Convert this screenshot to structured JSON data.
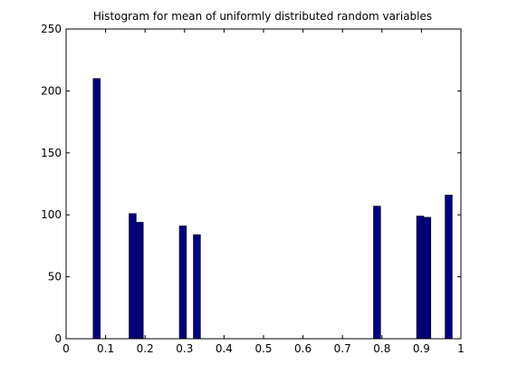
{
  "chart_data": {
    "type": "bar",
    "title": "Histogram for mean of uniformly distributed random variables",
    "xlabel": "",
    "ylabel": "",
    "xlim": [
      0,
      1
    ],
    "ylim": [
      0,
      250
    ],
    "xticks": [
      0,
      0.1,
      0.2,
      0.3,
      0.4,
      0.5,
      0.6,
      0.7,
      0.8,
      0.9,
      1
    ],
    "xtick_labels": [
      "0",
      "0.1",
      "0.2",
      "0.3",
      "0.4",
      "0.5",
      "0.6",
      "0.7",
      "0.8",
      "0.9",
      "1"
    ],
    "yticks": [
      0,
      50,
      100,
      150,
      200,
      250
    ],
    "ytick_labels": [
      "0",
      "50",
      "100",
      "150",
      "200",
      "250"
    ],
    "grid": false,
    "bar_color": "#000080",
    "bars": [
      {
        "x0": 0.0685,
        "x1": 0.0865,
        "value": 210
      },
      {
        "x0": 0.1595,
        "x1": 0.1775,
        "value": 101
      },
      {
        "x0": 0.1775,
        "x1": 0.1955,
        "value": 94
      },
      {
        "x0": 0.2868,
        "x1": 0.3048,
        "value": 91
      },
      {
        "x0": 0.3223,
        "x1": 0.3403,
        "value": 84
      },
      {
        "x0": 0.7786,
        "x1": 0.7966,
        "value": 107
      },
      {
        "x0": 0.8878,
        "x1": 0.9058,
        "value": 99
      },
      {
        "x0": 0.9058,
        "x1": 0.9238,
        "value": 98
      },
      {
        "x0": 0.96,
        "x1": 0.978,
        "value": 116
      }
    ]
  }
}
